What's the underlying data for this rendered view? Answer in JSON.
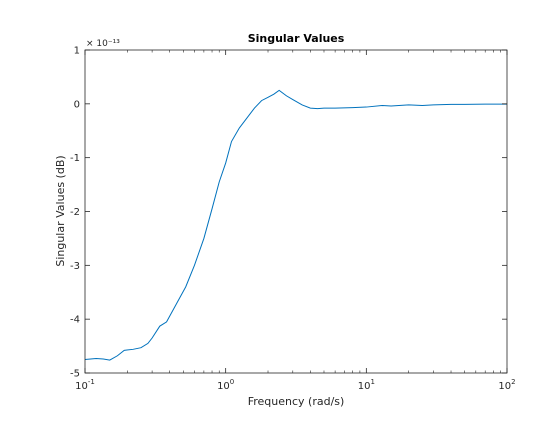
{
  "chart_data": {
    "type": "line",
    "title": "Singular Values",
    "xlabel": "Frequency (rad/s)",
    "ylabel": "Singular Values (dB)",
    "x_scale": "log",
    "xlim": [
      0.1,
      100
    ],
    "ylim": [
      -5e-13,
      1e-13
    ],
    "y_exponent_label": "× 10⁻¹³",
    "x_ticks": [
      {
        "value": 0.1,
        "base": "10",
        "exp": "-1"
      },
      {
        "value": 1,
        "base": "10",
        "exp": "0"
      },
      {
        "value": 10,
        "base": "10",
        "exp": "1"
      },
      {
        "value": 100,
        "base": "10",
        "exp": "2"
      }
    ],
    "y_ticks": [
      {
        "value": 1e-13,
        "label": "1"
      },
      {
        "value": 0,
        "label": "0"
      },
      {
        "value": -1e-13,
        "label": "-1"
      },
      {
        "value": -2e-13,
        "label": "-2"
      },
      {
        "value": -3e-13,
        "label": "-3"
      },
      {
        "value": -4e-13,
        "label": "-4"
      },
      {
        "value": -5e-13,
        "label": "-5"
      }
    ],
    "grid": false,
    "line_color": "#0072bd",
    "axis_color": "#262626",
    "series": [
      {
        "x": [
          0.1,
          0.12,
          0.135,
          0.15,
          0.17,
          0.19,
          0.22,
          0.25,
          0.28,
          0.3,
          0.34,
          0.38,
          0.45,
          0.52,
          0.6,
          0.7,
          0.8,
          0.9,
          1.0,
          1.1,
          1.25,
          1.4,
          1.6,
          1.8,
          2.0,
          2.2,
          2.4,
          2.7,
          3.0,
          3.5,
          4.0,
          4.5,
          5.0,
          6.0,
          8.0,
          10,
          13,
          15,
          20,
          25,
          30,
          40,
          50,
          70,
          100
        ],
        "y": [
          -4.75e-13,
          -4.73e-13,
          -4.74e-13,
          -4.76e-13,
          -4.68e-13,
          -4.58e-13,
          -4.56e-13,
          -4.53e-13,
          -4.45e-13,
          -4.35e-13,
          -4.13e-13,
          -4.05e-13,
          -3.7e-13,
          -3.4e-13,
          -3e-13,
          -2.5e-13,
          -1.95e-13,
          -1.45e-13,
          -1.1e-13,
          -7e-14,
          -4.5e-14,
          -2.8e-14,
          -8e-15,
          6e-15,
          1.2e-14,
          1.8e-14,
          2.5e-14,
          1.5e-14,
          8e-15,
          -2e-15,
          -8e-15,
          -9e-15,
          -8e-15,
          -8e-15,
          -7e-15,
          -6e-15,
          -3e-15,
          -4e-15,
          -2e-15,
          -3e-15,
          -2e-15,
          -1e-15,
          -1e-15,
          -5e-16,
          -5e-16
        ]
      }
    ]
  }
}
